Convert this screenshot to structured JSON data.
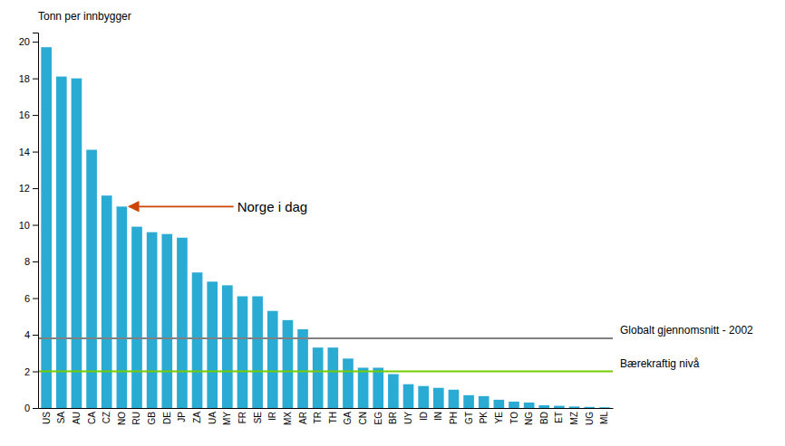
{
  "chart_data": {
    "type": "bar",
    "ylabel": "Tonn per innbygger",
    "categories": [
      "US",
      "SA",
      "AU",
      "CA",
      "CZ",
      "NO",
      "RU",
      "GB",
      "DE",
      "JP",
      "ZA",
      "UA",
      "MY",
      "FR",
      "SE",
      "IR",
      "MX",
      "AR",
      "TR",
      "TH",
      "GA",
      "CN",
      "EG",
      "BR",
      "UY",
      "ID",
      "IN",
      "PH",
      "GT",
      "PK",
      "YE",
      "TO",
      "NG",
      "BD",
      "ET",
      "MZ",
      "UG",
      "ML"
    ],
    "values": [
      19.7,
      18.1,
      18.0,
      14.1,
      11.6,
      11.0,
      9.9,
      9.6,
      9.5,
      9.3,
      7.4,
      6.9,
      6.7,
      6.1,
      6.1,
      5.3,
      4.8,
      4.3,
      3.3,
      3.3,
      2.7,
      2.2,
      2.2,
      1.85,
      1.3,
      1.2,
      1.1,
      1.0,
      0.7,
      0.65,
      0.45,
      0.35,
      0.3,
      0.15,
      0.12,
      0.08,
      0.06,
      0.04
    ],
    "color": "#29ABD4",
    "reference_lines": [
      {
        "value": 3.8,
        "label": "Globalt gjennomsnitt - 2002",
        "color": "#808080"
      },
      {
        "value": 2.0,
        "label": "Bærekraftig nivå",
        "color": "#77CC00"
      }
    ],
    "annotations": [
      {
        "text": "Norge i dag",
        "x": "NO",
        "y": 11.0,
        "color": "#CC4400"
      }
    ],
    "ylim": [
      0,
      20.5
    ],
    "yticks": [
      0,
      2,
      4,
      6,
      8,
      10,
      12,
      14,
      16,
      18,
      20
    ],
    "grid": false
  }
}
